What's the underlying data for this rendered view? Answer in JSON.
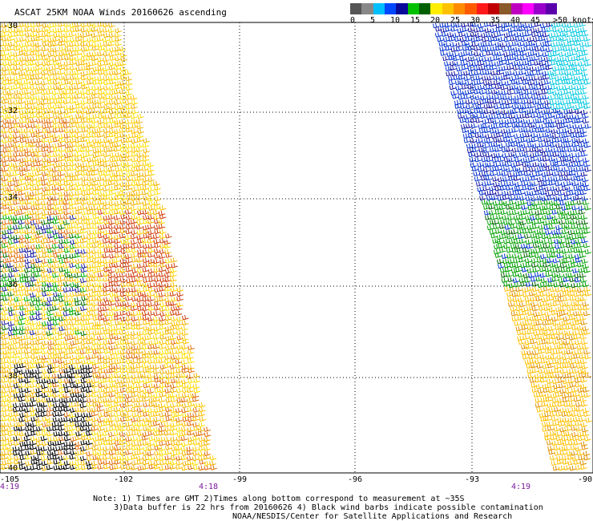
{
  "title": "ASCAT 25KM NOAA Winds 20160626 ascending",
  "legend": {
    "labels": [
      "0",
      "5",
      "10",
      "15",
      "20",
      "25",
      "30",
      "35",
      "40",
      "45",
      ">50 knots"
    ],
    "colors": [
      "#555555",
      "#888888",
      "#00bfff",
      "#0048ff",
      "#0a0a9a",
      "#00c000",
      "#006000",
      "#ffee00",
      "#ffc200",
      "#ff8c00",
      "#ff5a00",
      "#ff1a1a",
      "#c00000",
      "#8b5a2b",
      "#c000c0",
      "#ff00ff",
      "#9900cc",
      "#5a00aa"
    ]
  },
  "axes": {
    "lat_labels": [
      "-30",
      "-32",
      "-34",
      "-36",
      "-38",
      "-40"
    ],
    "lon_labels": [
      "-105",
      "-102",
      "-99",
      "-96",
      "-93",
      "-90"
    ]
  },
  "times": [
    "4:19",
    "4:18",
    "4:19"
  ],
  "notes": [
    "Note: 1) Times are GMT 2)Times along bottom correspond to measurement at ~35S",
    "3)Data buffer is 22 hrs from 20160626 4) Black wind barbs indicate possible contamination",
    "NOAA/NESDIS/Center for Satellite Applications and Research"
  ]
}
